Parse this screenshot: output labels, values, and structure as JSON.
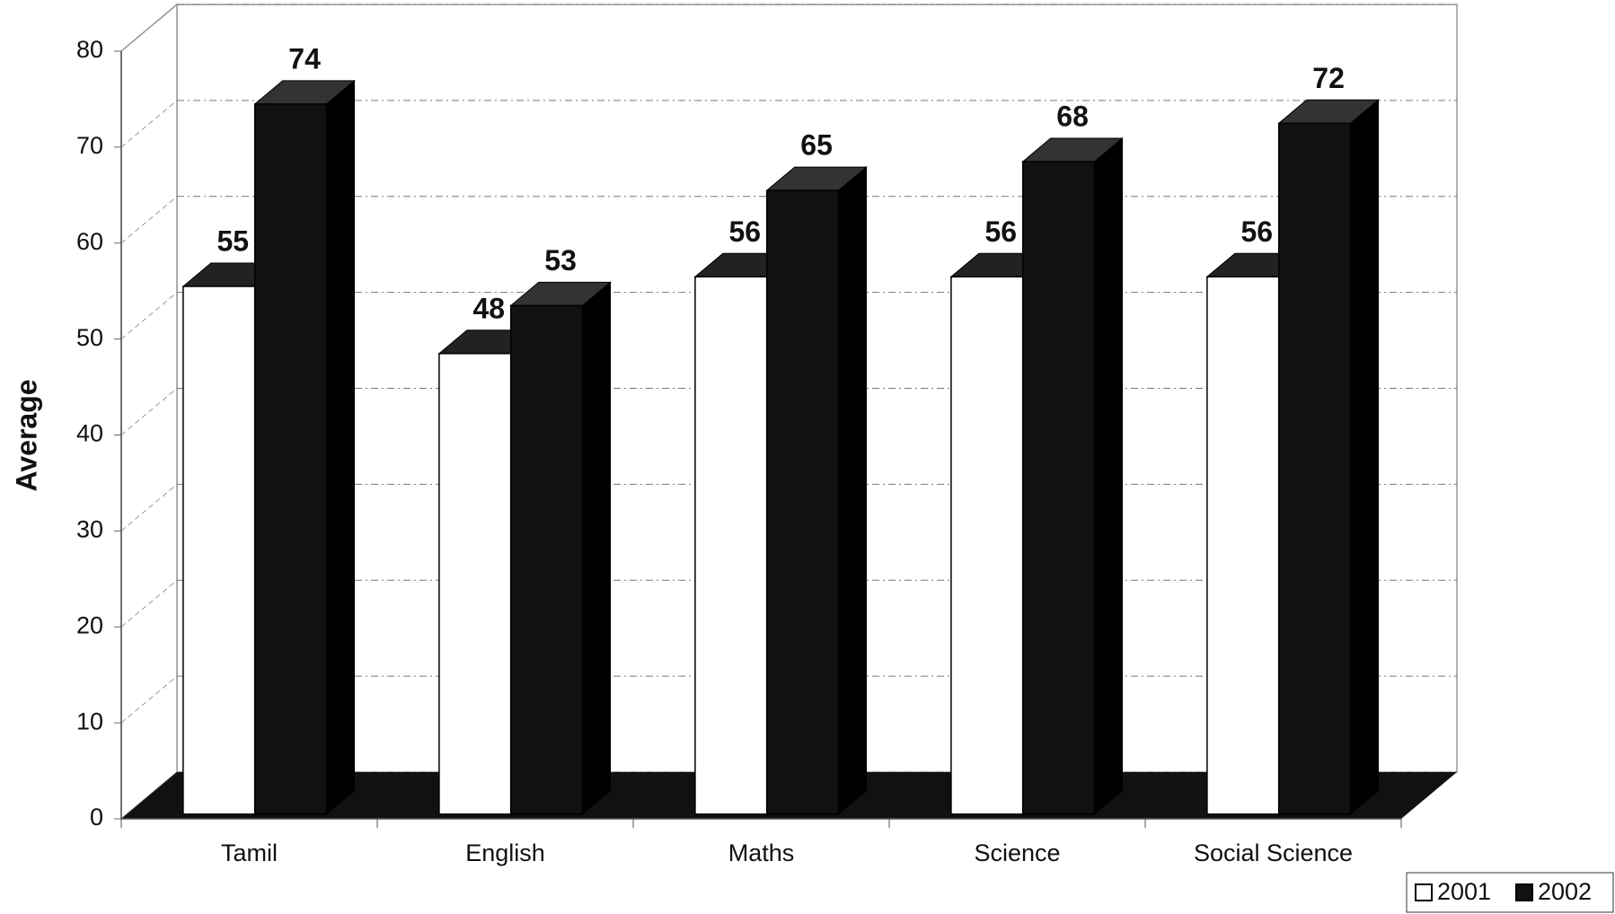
{
  "chart_data": {
    "type": "bar3d",
    "y_label": "Average",
    "categories": [
      "Tamil",
      "English",
      "Maths",
      "Science",
      "Social Science"
    ],
    "series": [
      {
        "name": "2001",
        "color": "#ffffff",
        "values": [
          55,
          48,
          56,
          56,
          56
        ]
      },
      {
        "name": "2002",
        "color": "#111111",
        "values": [
          74,
          53,
          65,
          68,
          72
        ]
      }
    ],
    "ylim": [
      0,
      80
    ],
    "yticks": [
      0,
      10,
      20,
      30,
      40,
      50,
      60,
      70,
      80
    ],
    "grid": true,
    "legend": "bottom-right"
  }
}
